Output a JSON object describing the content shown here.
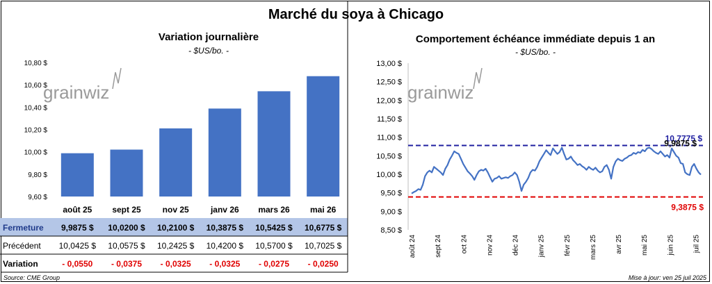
{
  "title": "Marché du soya à Chicago",
  "left_chart": {
    "title": "Variation journalière",
    "subtitle": "- $US/bo. -",
    "watermark": "grainwiz"
  },
  "right_chart": {
    "title": "Comportement échéance immédiate depuis 1 an",
    "subtitle": "- $US/bo. -",
    "watermark": "grainwiz"
  },
  "table": {
    "rows": [
      {
        "label": "Fermeture",
        "values": [
          "9,9875  $",
          "10,0200  $",
          "10,2100  $",
          "10,3875  $",
          "10,5425  $",
          "10,6775  $"
        ]
      },
      {
        "label": "Précédent",
        "values": [
          "10,0425  $",
          "10,0575  $",
          "10,2425  $",
          "10,4200  $",
          "10,5700  $",
          "10,7025  $"
        ]
      },
      {
        "label": "Variation",
        "values": [
          "- 0,0550",
          "- 0,0375",
          "- 0,0325",
          "- 0,0325",
          "- 0,0275",
          "- 0,0250"
        ]
      }
    ]
  },
  "footer": {
    "source": "Source: CME Group",
    "updated": "Mise à jour: ven 25 juil 2025"
  },
  "colors": {
    "bar": "#4472c4",
    "line": "#4472c4",
    "high_line": "#1f1fa0",
    "low_line": "#e00000",
    "fermeture_bg": "#b4c6e7",
    "negative": "#e00000"
  },
  "chart_data": [
    {
      "type": "bar",
      "title": "Variation journalière",
      "subtitle": "- $US/bo. -",
      "categories": [
        "août 25",
        "sept 25",
        "nov 25",
        "janv 26",
        "mars 26",
        "mai 26"
      ],
      "values": [
        9.9875,
        10.02,
        10.21,
        10.3875,
        10.5425,
        10.6775
      ],
      "ylim": [
        9.6,
        10.8
      ],
      "yticks": [
        9.6,
        9.8,
        10.0,
        10.2,
        10.4,
        10.6,
        10.8
      ],
      "ytick_labels": [
        "9,60 $",
        "9,80 $",
        "10,00 $",
        "10,20 $",
        "10,40 $",
        "10,60 $",
        "10,80 $"
      ],
      "grid": false,
      "legend": "none"
    },
    {
      "type": "line",
      "title": "Comportement échéance immédiate depuis 1 an",
      "subtitle": "- $US/bo. -",
      "x_tick_labels": [
        "août 24",
        "sept 24",
        "oct 24",
        "nov 24",
        "déc 24",
        "janv 25",
        "févr 25",
        "mars 25",
        "avr 25",
        "mai 25",
        "juin 25",
        "juil 25"
      ],
      "ylim": [
        8.5,
        13.0
      ],
      "yticks": [
        8.5,
        9.0,
        9.5,
        10.0,
        10.5,
        11.0,
        11.5,
        12.0,
        12.5,
        13.0
      ],
      "ytick_labels": [
        "8,50 $",
        "9,00 $",
        "9,50 $",
        "10,00 $",
        "10,50 $",
        "11,00 $",
        "11,50 $",
        "12,00 $",
        "12,50 $",
        "13,00 $"
      ],
      "y": [
        9.48,
        9.52,
        9.55,
        9.6,
        9.58,
        9.72,
        9.95,
        10.05,
        10.1,
        10.05,
        10.2,
        10.15,
        10.1,
        10.05,
        9.98,
        10.15,
        10.25,
        10.4,
        10.5,
        10.62,
        10.58,
        10.55,
        10.42,
        10.28,
        10.18,
        10.08,
        10.02,
        9.95,
        9.85,
        9.98,
        10.08,
        10.12,
        10.1,
        10.15,
        10.05,
        9.92,
        9.8,
        9.88,
        9.9,
        9.95,
        9.88,
        9.9,
        9.92,
        9.9,
        9.95,
        9.98,
        10.05,
        9.98,
        9.8,
        9.55,
        9.72,
        9.8,
        9.9,
        10.05,
        10.12,
        10.1,
        10.2,
        10.35,
        10.45,
        10.55,
        10.65,
        10.58,
        10.52,
        10.7,
        10.62,
        10.55,
        10.6,
        10.72,
        10.55,
        10.4,
        10.42,
        10.48,
        10.38,
        10.32,
        10.25,
        10.28,
        10.22,
        10.18,
        10.12,
        10.2,
        10.15,
        10.12,
        10.18,
        10.1,
        10.05,
        10.08,
        10.2,
        10.25,
        10.12,
        9.88,
        10.2,
        10.35,
        10.42,
        10.38,
        10.36,
        10.42,
        10.45,
        10.5,
        10.52,
        10.58,
        10.55,
        10.6,
        10.58,
        10.66,
        10.62,
        10.7,
        10.72,
        10.68,
        10.62,
        10.58,
        10.55,
        10.62,
        10.55,
        10.48,
        10.52,
        10.45,
        10.7,
        10.6,
        10.5,
        10.45,
        10.3,
        10.28,
        10.05,
        10.0,
        9.98,
        10.2,
        10.28,
        10.15,
        10.05,
        9.99
      ],
      "reference_lines": [
        {
          "value": 10.7775,
          "label": "10,7775 $"
        },
        {
          "value": 9.3875,
          "label": "9,3875 $"
        }
      ],
      "current_label": "9,9875 $",
      "grid": false,
      "legend": "none"
    }
  ]
}
